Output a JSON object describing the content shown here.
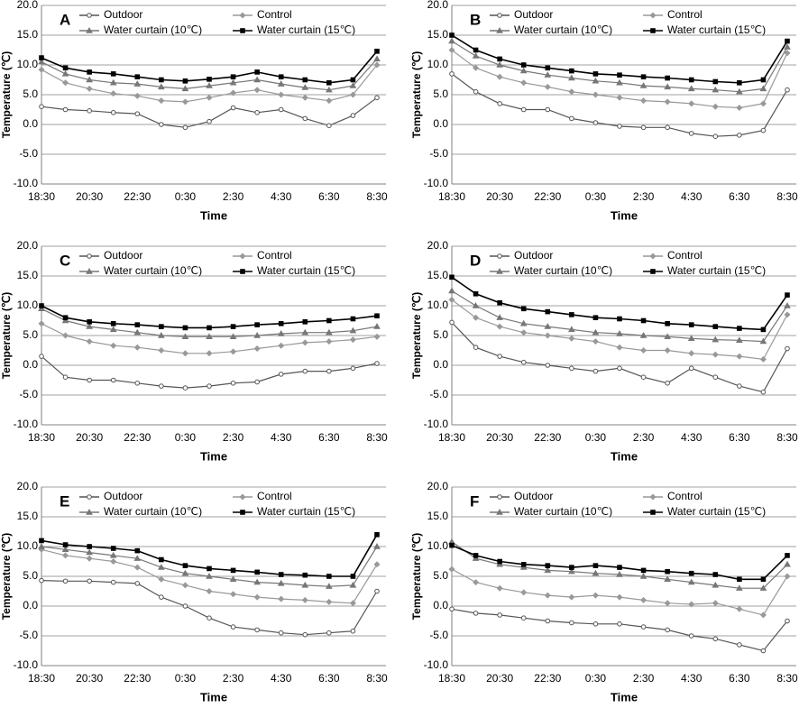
{
  "chart_data": [
    {
      "type": "line",
      "title": "A",
      "x_label": "Time",
      "y_label": "Temperature (℃)",
      "categories": [
        "18:30",
        null,
        "20:30",
        null,
        "22:30",
        null,
        "0:30",
        null,
        "2:30",
        null,
        "4:30",
        null,
        "6:30",
        null,
        "8:30"
      ],
      "ylim": [
        -10,
        20
      ],
      "yticks": [
        {
          "value": -10,
          "label": "-10.0"
        },
        {
          "value": -5,
          "label": "-5.0"
        },
        {
          "value": 0,
          "label": "0.0"
        },
        {
          "value": 5,
          "label": "5.0"
        },
        {
          "value": 10,
          "label": "10.0"
        },
        {
          "value": 15,
          "label": "15.0"
        },
        {
          "value": 20,
          "label": "20.0"
        }
      ],
      "grid": true,
      "series": [
        {
          "name": "Outdoor",
          "color": "#555555",
          "values": [
            3.0,
            2.5,
            2.3,
            2.0,
            1.8,
            0.0,
            -0.5,
            0.5,
            2.8,
            2.0,
            2.5,
            1.0,
            -0.2,
            1.5,
            4.5
          ]
        },
        {
          "name": "Control",
          "color": "#999999",
          "values": [
            9.2,
            7.0,
            6.0,
            5.2,
            4.8,
            4.0,
            3.8,
            4.5,
            5.3,
            5.8,
            5.0,
            4.5,
            4.0,
            5.0,
            10.0
          ]
        },
        {
          "name": "Water curtain (10℃)",
          "color": "#777777",
          "values": [
            10.5,
            8.5,
            7.5,
            7.0,
            6.8,
            6.3,
            6.0,
            6.5,
            7.0,
            7.5,
            6.8,
            6.2,
            5.8,
            6.5,
            11.0
          ]
        },
        {
          "name": "Water curtain (15℃)",
          "color": "#000000",
          "values": [
            11.2,
            9.5,
            8.8,
            8.5,
            8.0,
            7.5,
            7.3,
            7.6,
            8.0,
            8.8,
            8.0,
            7.5,
            7.0,
            7.5,
            12.3
          ]
        }
      ]
    },
    {
      "type": "line",
      "title": "B",
      "x_label": "Time",
      "y_label": "Temperature (℃)",
      "categories": [
        "18:30",
        null,
        "20:30",
        null,
        "22:30",
        null,
        "0:30",
        null,
        "2:30",
        null,
        "4:30",
        null,
        "6:30",
        null,
        "8:30"
      ],
      "ylim": [
        -10,
        20
      ],
      "yticks": [
        {
          "value": -10,
          "label": "-10.0"
        },
        {
          "value": -5,
          "label": "-5.0"
        },
        {
          "value": 0,
          "label": "0.0"
        },
        {
          "value": 5,
          "label": "5.0"
        },
        {
          "value": 10,
          "label": "10.0"
        },
        {
          "value": 15,
          "label": "15.0"
        },
        {
          "value": 20,
          "label": "20.0"
        }
      ],
      "grid": true,
      "series": [
        {
          "name": "Outdoor",
          "color": "#555555",
          "values": [
            8.5,
            5.5,
            3.5,
            2.5,
            2.5,
            1.0,
            0.3,
            -0.3,
            -0.5,
            -0.5,
            -1.5,
            -2.0,
            -1.8,
            -1.0,
            5.8
          ]
        },
        {
          "name": "Control",
          "color": "#999999",
          "values": [
            12.5,
            9.5,
            8.0,
            7.0,
            6.3,
            5.5,
            5.0,
            4.5,
            4.0,
            3.8,
            3.5,
            3.0,
            2.8,
            3.5,
            12.0
          ]
        },
        {
          "name": "Water curtain (10℃)",
          "color": "#777777",
          "values": [
            14.0,
            11.5,
            10.0,
            9.0,
            8.3,
            7.8,
            7.3,
            7.0,
            6.5,
            6.3,
            6.0,
            5.8,
            5.5,
            6.0,
            13.0
          ]
        },
        {
          "name": "Water curtain (15℃)",
          "color": "#000000",
          "values": [
            15.0,
            12.5,
            11.0,
            10.0,
            9.5,
            9.0,
            8.5,
            8.3,
            8.0,
            7.8,
            7.5,
            7.2,
            7.0,
            7.5,
            14.0
          ]
        }
      ]
    },
    {
      "type": "line",
      "title": "C",
      "x_label": "Time",
      "y_label": "Temperature (℃)",
      "categories": [
        "18:30",
        null,
        "20:30",
        null,
        "22:30",
        null,
        "0:30",
        null,
        "2:30",
        null,
        "4:30",
        null,
        "6:30",
        null,
        "8:30"
      ],
      "ylim": [
        -10,
        20
      ],
      "yticks": [
        {
          "value": -10,
          "label": "-10.0"
        },
        {
          "value": -5,
          "label": "-5.0"
        },
        {
          "value": 0,
          "label": "0.0"
        },
        {
          "value": 5,
          "label": "5.0"
        },
        {
          "value": 10,
          "label": "10.0"
        },
        {
          "value": 15,
          "label": "15.0"
        },
        {
          "value": 20,
          "label": "20.0"
        }
      ],
      "grid": true,
      "series": [
        {
          "name": "Outdoor",
          "color": "#555555",
          "values": [
            1.5,
            -2.0,
            -2.5,
            -2.5,
            -3.0,
            -3.5,
            -3.8,
            -3.5,
            -3.0,
            -2.8,
            -1.5,
            -1.0,
            -1.0,
            -0.5,
            0.3
          ]
        },
        {
          "name": "Control",
          "color": "#999999",
          "values": [
            7.0,
            5.0,
            4.0,
            3.3,
            3.0,
            2.5,
            2.0,
            2.0,
            2.3,
            2.8,
            3.3,
            3.8,
            4.0,
            4.3,
            4.8
          ]
        },
        {
          "name": "Water curtain (10℃)",
          "color": "#777777",
          "values": [
            9.5,
            7.5,
            6.5,
            6.0,
            5.5,
            5.0,
            4.8,
            4.8,
            4.8,
            5.0,
            5.3,
            5.5,
            5.5,
            5.8,
            6.5
          ]
        },
        {
          "name": "Water curtain (15℃)",
          "color": "#000000",
          "values": [
            10.0,
            8.0,
            7.3,
            7.0,
            6.8,
            6.5,
            6.3,
            6.3,
            6.5,
            6.8,
            7.0,
            7.3,
            7.5,
            7.8,
            8.3
          ]
        }
      ]
    },
    {
      "type": "line",
      "title": "D",
      "x_label": "Time",
      "y_label": "Temperature (℃)",
      "categories": [
        "18:30",
        null,
        "20:30",
        null,
        "22:30",
        null,
        "0:30",
        null,
        "2:30",
        null,
        "4:30",
        null,
        "6:30",
        null,
        "8:30"
      ],
      "ylim": [
        -10,
        20
      ],
      "yticks": [
        {
          "value": -10,
          "label": "-10.0"
        },
        {
          "value": -5,
          "label": "-5.0"
        },
        {
          "value": 0,
          "label": "0.0"
        },
        {
          "value": 5,
          "label": "5.0"
        },
        {
          "value": 10,
          "label": "10.0"
        },
        {
          "value": 15,
          "label": "15.0"
        },
        {
          "value": 20,
          "label": "20.0"
        }
      ],
      "grid": true,
      "series": [
        {
          "name": "Outdoor",
          "color": "#555555",
          "values": [
            7.2,
            3.0,
            1.5,
            0.5,
            0.0,
            -0.5,
            -1.0,
            -0.5,
            -2.0,
            -3.0,
            -0.5,
            -2.0,
            -3.5,
            -4.5,
            2.8
          ]
        },
        {
          "name": "Control",
          "color": "#999999",
          "values": [
            11.0,
            8.0,
            6.5,
            5.5,
            5.0,
            4.5,
            4.0,
            3.0,
            2.5,
            2.5,
            2.0,
            1.8,
            1.5,
            1.0,
            8.5
          ]
        },
        {
          "name": "Water curtain (10℃)",
          "color": "#777777",
          "values": [
            12.5,
            10.0,
            8.0,
            7.0,
            6.5,
            6.0,
            5.5,
            5.3,
            5.0,
            4.8,
            4.5,
            4.3,
            4.2,
            4.0,
            10.0
          ]
        },
        {
          "name": "Water curtain (15℃)",
          "color": "#000000",
          "values": [
            14.8,
            12.0,
            10.5,
            9.5,
            9.0,
            8.5,
            8.0,
            7.8,
            7.5,
            7.0,
            6.8,
            6.5,
            6.2,
            6.0,
            11.8
          ]
        }
      ]
    },
    {
      "type": "line",
      "title": "E",
      "x_label": "Time",
      "y_label": "Temperature (℃)",
      "categories": [
        "18:30",
        null,
        "20:30",
        null,
        "22:30",
        null,
        "0:30",
        null,
        "2:30",
        null,
        "4:30",
        null,
        "6:30",
        null,
        "8:30"
      ],
      "ylim": [
        -10,
        20
      ],
      "yticks": [
        {
          "value": -10,
          "label": "-10.0"
        },
        {
          "value": -5,
          "label": "-5.0"
        },
        {
          "value": 0,
          "label": "0.0"
        },
        {
          "value": 5,
          "label": "5.0"
        },
        {
          "value": 10,
          "label": "10.0"
        },
        {
          "value": 15,
          "label": "15.0"
        },
        {
          "value": 20,
          "label": "20.0"
        }
      ],
      "grid": true,
      "series": [
        {
          "name": "Outdoor",
          "color": "#555555",
          "values": [
            4.3,
            4.2,
            4.2,
            4.0,
            3.8,
            1.5,
            0.0,
            -2.0,
            -3.5,
            -4.0,
            -4.5,
            -4.8,
            -4.5,
            -4.2,
            2.5
          ]
        },
        {
          "name": "Control",
          "color": "#999999",
          "values": [
            9.5,
            8.5,
            8.0,
            7.5,
            6.5,
            4.5,
            3.5,
            2.5,
            2.0,
            1.5,
            1.2,
            1.0,
            0.7,
            0.5,
            7.0
          ]
        },
        {
          "name": "Water curtain (10℃)",
          "color": "#777777",
          "values": [
            10.0,
            9.5,
            9.0,
            8.5,
            8.0,
            6.5,
            5.5,
            5.0,
            4.5,
            4.0,
            3.8,
            3.5,
            3.3,
            3.5,
            10.0
          ]
        },
        {
          "name": "Water curtain (15℃)",
          "color": "#000000",
          "values": [
            11.0,
            10.3,
            10.0,
            9.7,
            9.3,
            7.8,
            6.8,
            6.3,
            6.0,
            5.7,
            5.3,
            5.2,
            5.0,
            5.0,
            12.0
          ]
        }
      ]
    },
    {
      "type": "line",
      "title": "F",
      "x_label": "Time",
      "y_label": "Temperature (℃)",
      "categories": [
        "18:30",
        null,
        "20:30",
        null,
        "22:30",
        null,
        "0:30",
        null,
        "2:30",
        null,
        "4:30",
        null,
        "6:30",
        null,
        "8:30"
      ],
      "ylim": [
        -10,
        20
      ],
      "yticks": [
        {
          "value": -10,
          "label": "-10.0"
        },
        {
          "value": -5,
          "label": "-5.0"
        },
        {
          "value": 0,
          "label": "0.0"
        },
        {
          "value": 5,
          "label": "5.0"
        },
        {
          "value": 10,
          "label": "10.0"
        },
        {
          "value": 15,
          "label": "15.0"
        },
        {
          "value": 20,
          "label": "20.0"
        }
      ],
      "grid": true,
      "series": [
        {
          "name": "Outdoor",
          "color": "#555555",
          "values": [
            -0.5,
            -1.2,
            -1.5,
            -2.0,
            -2.5,
            -2.8,
            -3.0,
            -3.0,
            -3.5,
            -4.0,
            -5.0,
            -5.5,
            -6.5,
            -7.5,
            -2.5
          ]
        },
        {
          "name": "Control",
          "color": "#999999",
          "values": [
            6.2,
            4.0,
            3.0,
            2.3,
            1.8,
            1.5,
            1.8,
            1.5,
            1.0,
            0.5,
            0.3,
            0.5,
            -0.5,
            -1.5,
            5.0
          ]
        },
        {
          "name": "Water curtain (10℃)",
          "color": "#777777",
          "values": [
            10.8,
            8.0,
            7.0,
            6.5,
            6.0,
            5.8,
            5.5,
            5.3,
            5.0,
            4.5,
            4.0,
            3.5,
            3.0,
            3.0,
            7.0
          ]
        },
        {
          "name": "Water curtain (15℃)",
          "color": "#000000",
          "values": [
            10.2,
            8.5,
            7.5,
            7.0,
            6.8,
            6.5,
            6.8,
            6.5,
            6.0,
            5.8,
            5.5,
            5.3,
            4.5,
            4.5,
            8.5
          ]
        }
      ]
    }
  ]
}
